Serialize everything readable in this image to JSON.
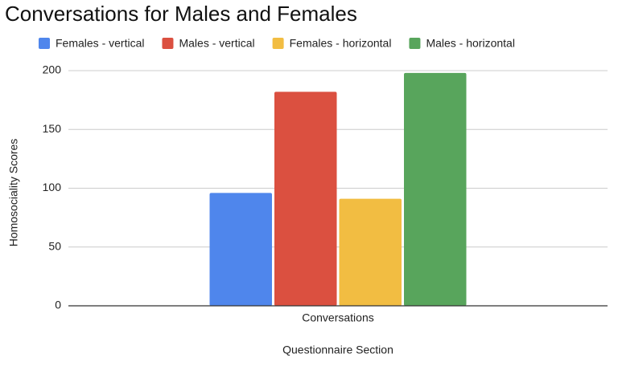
{
  "chart_data": {
    "type": "bar",
    "title": "Conversations for Males and Females",
    "categories": [
      "Conversations"
    ],
    "series": [
      {
        "name": "Females - vertical",
        "color": "#4f86ec",
        "values": [
          96
        ]
      },
      {
        "name": "Males - vertical",
        "color": "#db5040",
        "values": [
          182
        ]
      },
      {
        "name": "Females - horizontal",
        "color": "#f2bd42",
        "values": [
          91
        ]
      },
      {
        "name": "Males - horizontal",
        "color": "#58a55c",
        "values": [
          198
        ]
      }
    ],
    "x_label": "Questionnaire Section",
    "y_label": "Homosociality Scores",
    "ylim": [
      0,
      200
    ],
    "yticks": [
      0,
      50,
      100,
      150,
      200
    ],
    "grid": true,
    "legend": "top"
  }
}
